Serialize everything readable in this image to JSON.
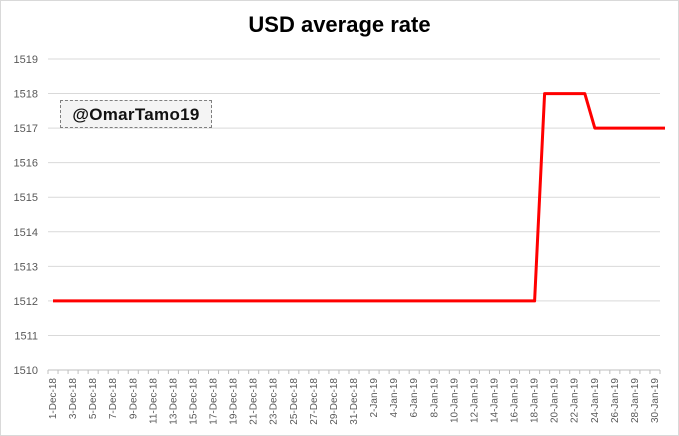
{
  "chart_data": {
    "type": "line",
    "title": "USD average rate",
    "xlabel": "",
    "ylabel": "",
    "ylim": [
      1510,
      1519
    ],
    "y_ticks": [
      1510,
      1511,
      1512,
      1513,
      1514,
      1515,
      1516,
      1517,
      1518,
      1519
    ],
    "grid": "horizontal",
    "legend": "none",
    "line_color": "#ff0000",
    "x_tick_labels": [
      "1-Dec-18",
      "3-Dec-18",
      "5-Dec-18",
      "7-Dec-18",
      "9-Dec-18",
      "11-Dec-18",
      "13-Dec-18",
      "15-Dec-18",
      "17-Dec-18",
      "19-Dec-18",
      "21-Dec-18",
      "23-Dec-18",
      "25-Dec-18",
      "27-Dec-18",
      "29-Dec-18",
      "31-Dec-18",
      "2-Jan-19",
      "4-Jan-19",
      "6-Jan-19",
      "8-Jan-19",
      "10-Jan-19",
      "12-Jan-19",
      "14-Jan-19",
      "16-Jan-19",
      "18-Jan-19",
      "20-Jan-19",
      "22-Jan-19",
      "24-Jan-19",
      "26-Jan-19",
      "28-Jan-19",
      "30-Jan-19"
    ],
    "series": [
      {
        "x": [
          "1-Dec-18",
          "18-Jan-19",
          "19-Jan-19",
          "23-Jan-19",
          "24-Jan-19",
          "31-Jan-19"
        ],
        "values": [
          1512,
          1512,
          1518,
          1518,
          1517,
          1517
        ]
      }
    ]
  },
  "watermark": "@OmarTamo19"
}
